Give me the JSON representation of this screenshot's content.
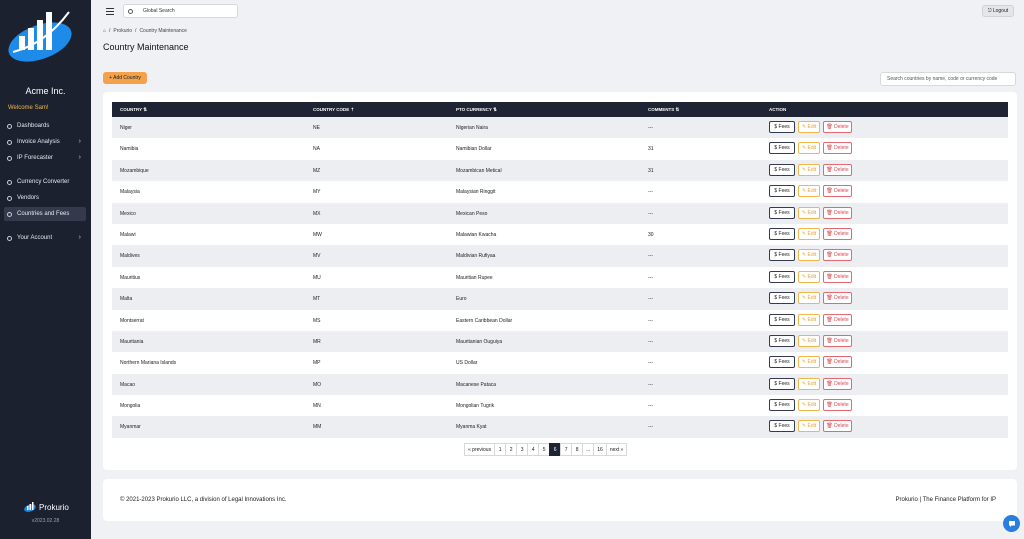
{
  "sidebar": {
    "org_name": "Acme Inc.",
    "welcome": "Welcome Sam!",
    "items": [
      {
        "label": "Dashboards",
        "chevron": false,
        "active": false
      },
      {
        "label": "Invoice Analysis",
        "chevron": true,
        "active": false
      },
      {
        "label": "IP Forecaster",
        "chevron": true,
        "active": false
      },
      {
        "label": "Currency Converter",
        "chevron": false,
        "active": false
      },
      {
        "label": "Vendors",
        "chevron": false,
        "active": false
      },
      {
        "label": "Countries and Fees",
        "chevron": false,
        "active": true
      },
      {
        "label": "Your Account",
        "chevron": true,
        "active": false
      }
    ],
    "brand_name": "Prokurio",
    "version": "v2023.02.28"
  },
  "topbar": {
    "search_placeholder": "Global Search",
    "logout_label": "Logout"
  },
  "breadcrumb": {
    "home_sep": "/",
    "items": [
      "Prokurio",
      "Country Maintenance"
    ]
  },
  "page_title": "Country Maintenance",
  "add_button_label": "+ Add Country",
  "table_search_placeholder": "Search countries by name, code or currency code",
  "table": {
    "headers": [
      "COUNTRY",
      "COUNTRY CODE",
      "PTO CURRENCY",
      "COMMENTS",
      "ACTION"
    ],
    "rows": [
      {
        "country": "Niger",
        "code": "NE",
        "currency": "Nigerian Naira",
        "comments": "---"
      },
      {
        "country": "Namibia",
        "code": "NA",
        "currency": "Namibian Dollar",
        "comments": "31"
      },
      {
        "country": "Mozambique",
        "code": "MZ",
        "currency": "Mozambican Metical",
        "comments": "31"
      },
      {
        "country": "Malaysia",
        "code": "MY",
        "currency": "Malaysian Ringgit",
        "comments": "---"
      },
      {
        "country": "Mexico",
        "code": "MX",
        "currency": "Mexican Peso",
        "comments": "---"
      },
      {
        "country": "Malawi",
        "code": "MW",
        "currency": "Malawian Kwacha",
        "comments": "30"
      },
      {
        "country": "Maldives",
        "code": "MV",
        "currency": "Maldivian Rufiyaa",
        "comments": "---"
      },
      {
        "country": "Mauritius",
        "code": "MU",
        "currency": "Mauritian Rupee",
        "comments": "---"
      },
      {
        "country": "Malta",
        "code": "MT",
        "currency": "Euro",
        "comments": "---"
      },
      {
        "country": "Montserrat",
        "code": "MS",
        "currency": "Eastern Caribbean Dollar",
        "comments": "---"
      },
      {
        "country": "Mauritania",
        "code": "MR",
        "currency": "Mauritanian Ouguiya",
        "comments": "---"
      },
      {
        "country": "Northern Mariana Islands",
        "code": "MP",
        "currency": "US Dollar",
        "comments": "---"
      },
      {
        "country": "Macao",
        "code": "MO",
        "currency": "Macanese Pataca",
        "comments": "---"
      },
      {
        "country": "Mongolia",
        "code": "MN",
        "currency": "Mongolian Tugrik",
        "comments": "---"
      },
      {
        "country": "Myanmar",
        "code": "MM",
        "currency": "Myanma Kyat",
        "comments": "---"
      }
    ],
    "action_labels": {
      "fees": "$ Fees",
      "edit": "Edit",
      "delete": "Delete"
    }
  },
  "pagination": {
    "items": [
      "« previous",
      "1",
      "2",
      "3",
      "4",
      "5",
      "6",
      "7",
      "8",
      "...",
      "16",
      "next »"
    ],
    "active": "6"
  },
  "footer": {
    "left": "© 2021-2023 Prokurio LLC, a division of Legal Innovations Inc.",
    "right": "Prokurio | The Finance Platform for IP"
  },
  "colors": {
    "sidebar_bg": "#1c2130",
    "accent_orange": "#f3a24b",
    "table_header_bg": "#1e2433",
    "delete_red": "#d9454f",
    "edit_amber": "#e7a333"
  }
}
